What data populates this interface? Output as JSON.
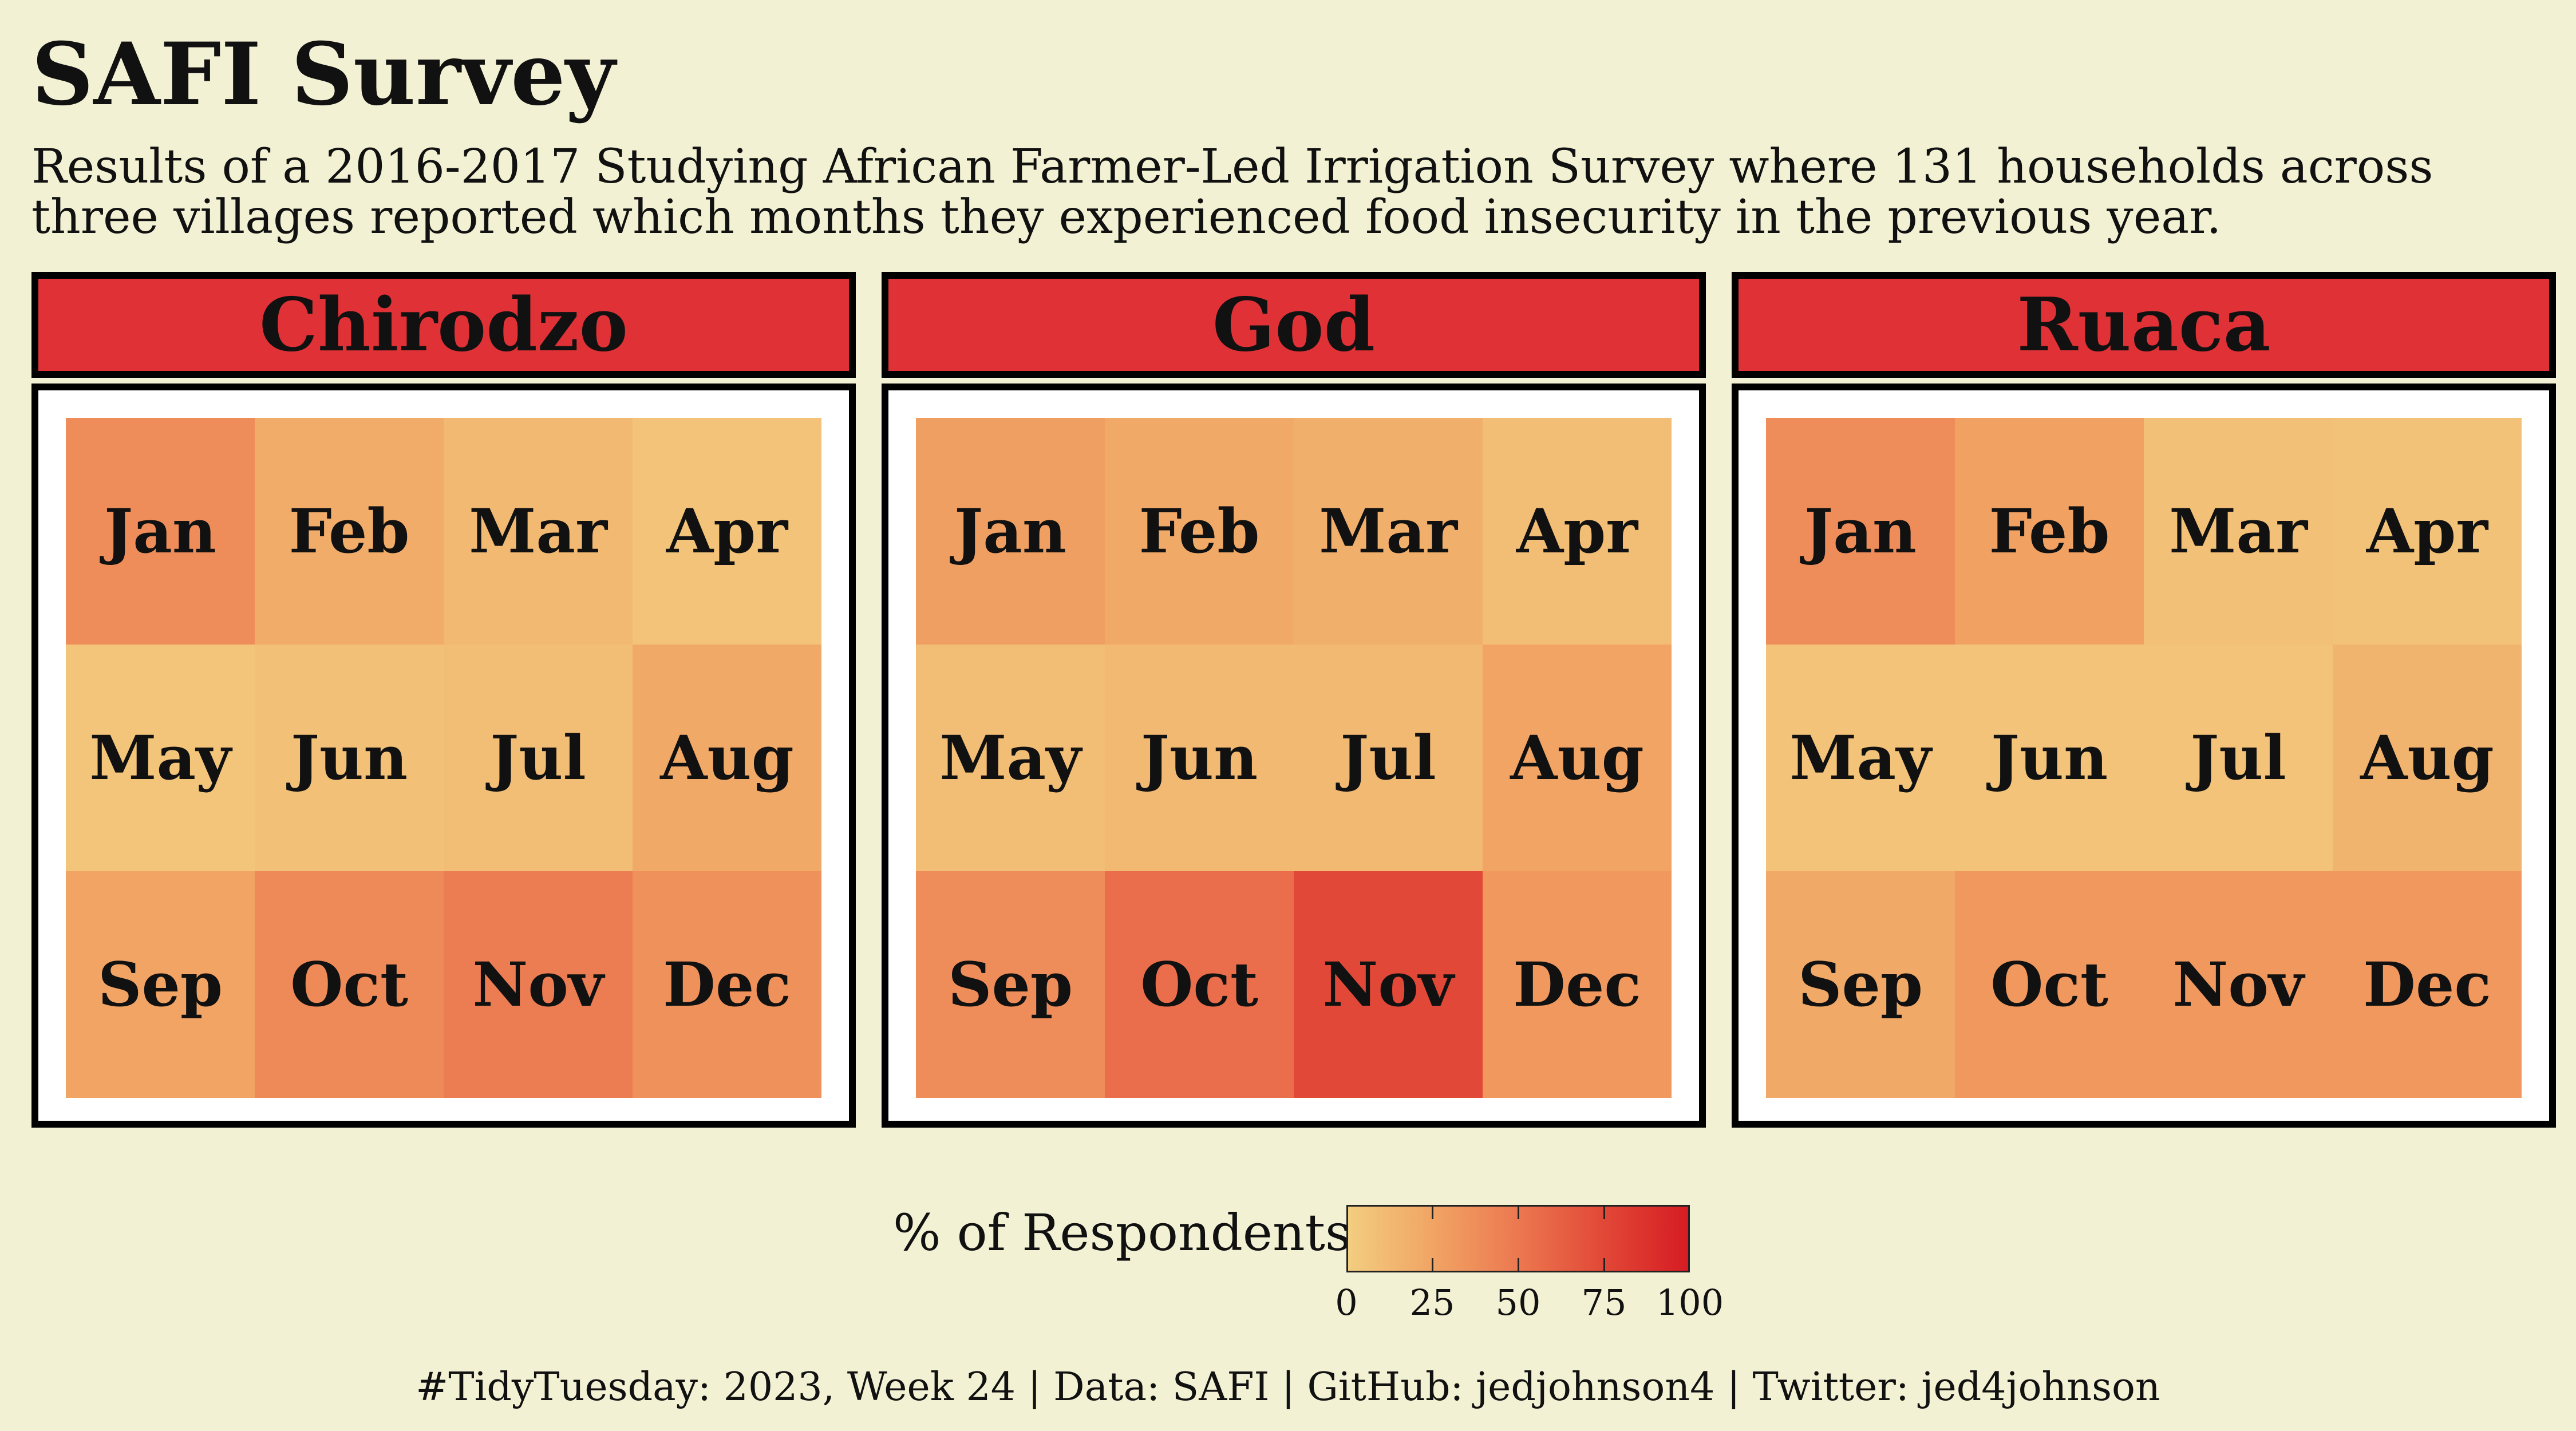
{
  "title": "SAFI Survey",
  "subtitle_line1": "Results of a 2016-2017 Studying African Farmer-Led Irrigation Survey where 131 households across",
  "subtitle_line2": "three villages reported which months they experienced food insecurity in the previous year.",
  "caption": "#TidyTuesday: 2023, Week 24 | Data: SAFI | GitHub: jedjohnson4 | Twitter: jed4johnson",
  "colors": {
    "background": "#f3f1d3",
    "strip": "#e03236",
    "scale_low": "#f2cd80",
    "scale_high": "#d61c23"
  },
  "chart_data": {
    "type": "heatmap",
    "legend": {
      "title": "% of Respondents",
      "ticks": [
        "0",
        "25",
        "50",
        "75",
        "100"
      ],
      "range": [
        0,
        100
      ]
    },
    "months": [
      "Jan",
      "Feb",
      "Mar",
      "Apr",
      "May",
      "Jun",
      "Jul",
      "Aug",
      "Sep",
      "Oct",
      "Nov",
      "Dec"
    ],
    "panels": [
      {
        "name": "Chirodzo",
        "values": [
          38,
          20,
          12,
          6,
          5,
          8,
          9,
          22,
          25,
          40,
          48,
          36
        ]
      },
      {
        "name": "God",
        "values": [
          28,
          22,
          18,
          10,
          9,
          12,
          12,
          25,
          38,
          55,
          75,
          32
        ]
      },
      {
        "name": "Ruaca",
        "values": [
          38,
          26,
          8,
          7,
          6,
          6,
          6,
          15,
          22,
          32,
          32,
          32
        ]
      }
    ]
  }
}
